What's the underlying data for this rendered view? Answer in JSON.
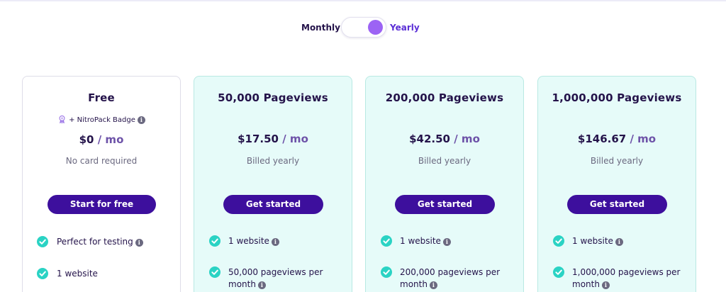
{
  "billing": {
    "monthly_label": "Monthly",
    "yearly_label": "Yearly",
    "selected": "Yearly",
    "accent_color": "#9c63f4"
  },
  "colors": {
    "primary_button": "#3d0f9d",
    "paid_card_bg": "#e6fbf9",
    "check": "#2ad3c4"
  },
  "plans": [
    {
      "title": "Free",
      "badge_text": "+ NitroPack Badge",
      "badge_icon": "award-ribbon-icon",
      "price_amount": "$0",
      "price_period": "/ mo",
      "note": "No card required",
      "cta": "Start for free",
      "features": [
        {
          "text": "Perfect for testing",
          "info": true
        },
        {
          "text": "1 website",
          "info": false
        }
      ]
    },
    {
      "title": "50,000 Pageviews",
      "price_amount": "$17.50",
      "price_period": "/ mo",
      "note": "Billed yearly",
      "cta": "Get started",
      "features": [
        {
          "text": "1 website",
          "info": true
        },
        {
          "text": "50,000 pageviews per month",
          "info": true
        }
      ]
    },
    {
      "title": "200,000 Pageviews",
      "price_amount": "$42.50",
      "price_period": "/ mo",
      "note": "Billed yearly",
      "cta": "Get started",
      "features": [
        {
          "text": "1 website",
          "info": true
        },
        {
          "text": "200,000 pageviews per month",
          "info": true
        }
      ]
    },
    {
      "title": "1,000,000 Pageviews",
      "price_amount": "$146.67",
      "price_period": "/ mo",
      "note": "Billed yearly",
      "cta": "Get started",
      "features": [
        {
          "text": "1 website",
          "info": true
        },
        {
          "text": "1,000,000 pageviews per month",
          "info": true
        }
      ]
    }
  ]
}
